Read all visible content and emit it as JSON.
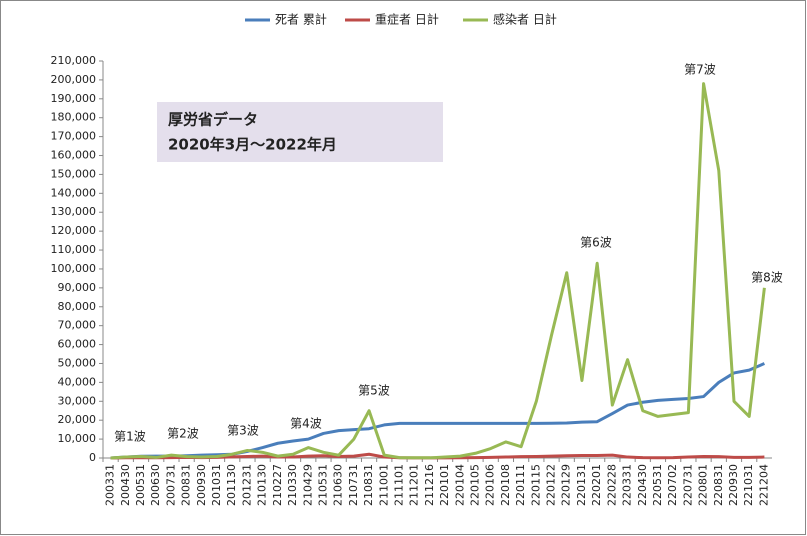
{
  "chart_data": {
    "type": "line",
    "categories": [
      "200331",
      "200430",
      "200531",
      "200630",
      "200731",
      "200831",
      "200930",
      "201031",
      "201130",
      "201231",
      "210130",
      "210227",
      "210330",
      "210429",
      "210531",
      "210630",
      "210731",
      "210831",
      "211001",
      "211101",
      "211201",
      "211216",
      "220101",
      "220104",
      "220105",
      "220106",
      "220108",
      "220111",
      "220115",
      "220122",
      "220129",
      "220131",
      "220201",
      "220228",
      "220331",
      "220430",
      "220531",
      "220702",
      "220731",
      "220801",
      "220831",
      "220930",
      "221031",
      "221204"
    ],
    "series": [
      {
        "name": "死者 累計",
        "color": "#4a7ebb",
        "values": [
          0,
          500,
          900,
          1000,
          1000,
          1200,
          1500,
          1700,
          2000,
          3500,
          5500,
          7800,
          9000,
          10000,
          13000,
          14500,
          15000,
          15500,
          17500,
          18300,
          18300,
          18300,
          18300,
          18300,
          18300,
          18300,
          18300,
          18300,
          18300,
          18400,
          18500,
          19000,
          19200,
          23500,
          28000,
          29500,
          30500,
          31000,
          31500,
          32500,
          40000,
          45000,
          46500,
          50000
        ]
      },
      {
        "name": "重症者 日計",
        "color": "#be4b48",
        "values": [
          0,
          100,
          200,
          100,
          200,
          300,
          200,
          300,
          600,
          800,
          1000,
          500,
          500,
          1000,
          1200,
          800,
          1000,
          2000,
          500,
          100,
          50,
          50,
          50,
          100,
          200,
          300,
          500,
          700,
          800,
          1000,
          1200,
          1300,
          1300,
          1500,
          500,
          200,
          150,
          200,
          500,
          800,
          700,
          300,
          300,
          500
        ]
      },
      {
        "name": "感染者 日計",
        "color": "#98b954",
        "values": [
          0,
          500,
          800,
          300,
          1500,
          700,
          500,
          800,
          2000,
          4000,
          3000,
          1000,
          2000,
          5500,
          3000,
          1500,
          10000,
          25000,
          1500,
          200,
          100,
          100,
          500,
          1000,
          2500,
          5000,
          8500,
          6000,
          30000,
          65000,
          98000,
          41000,
          103000,
          28000,
          52000,
          25000,
          22000,
          23000,
          24000,
          198000,
          152000,
          30000,
          22000,
          90000
        ]
      }
    ],
    "ylim": [
      0,
      210000
    ],
    "yticks": [
      0,
      {
        "value": 10000,
        "label": "10,000"
      },
      {
        "value": 20000,
        "label": "20,000"
      },
      {
        "value": 30000,
        "label": "30,000"
      },
      {
        "value": 40000,
        "label": "40,000"
      },
      {
        "value": 50000,
        "label": "50,000"
      },
      {
        "value": 60000,
        "label": "60,000"
      },
      {
        "value": 70000,
        "label": "70,000"
      },
      {
        "value": 80000,
        "label": "80,000"
      },
      {
        "value": 90000,
        "label": "90,000"
      },
      {
        "value": 100000,
        "label": "100,000"
      },
      {
        "value": 110000,
        "label": "110,000"
      },
      {
        "value": 120000,
        "label": "120,000"
      },
      {
        "value": 130000,
        "label": "130,000"
      },
      {
        "value": 140000,
        "label": "140,000"
      },
      {
        "value": 150000,
        "label": "150,000"
      },
      {
        "value": 160000,
        "label": "160,000"
      },
      {
        "value": 170000,
        "label": "170,000"
      },
      {
        "value": 180000,
        "label": "180,000"
      },
      {
        "value": 190000,
        "label": "190,000"
      },
      {
        "value": 200000,
        "label": "200,000"
      },
      {
        "value": 210000,
        "label": "210,000"
      }
    ],
    "annotations": [
      "第1波",
      "第2波",
      "第3波",
      "第4波",
      "第5波",
      "第6波",
      "第7波",
      "第8波"
    ],
    "textbox": [
      "厚労省データ",
      "2020年3月～2022年月"
    ],
    "legend": "top"
  }
}
